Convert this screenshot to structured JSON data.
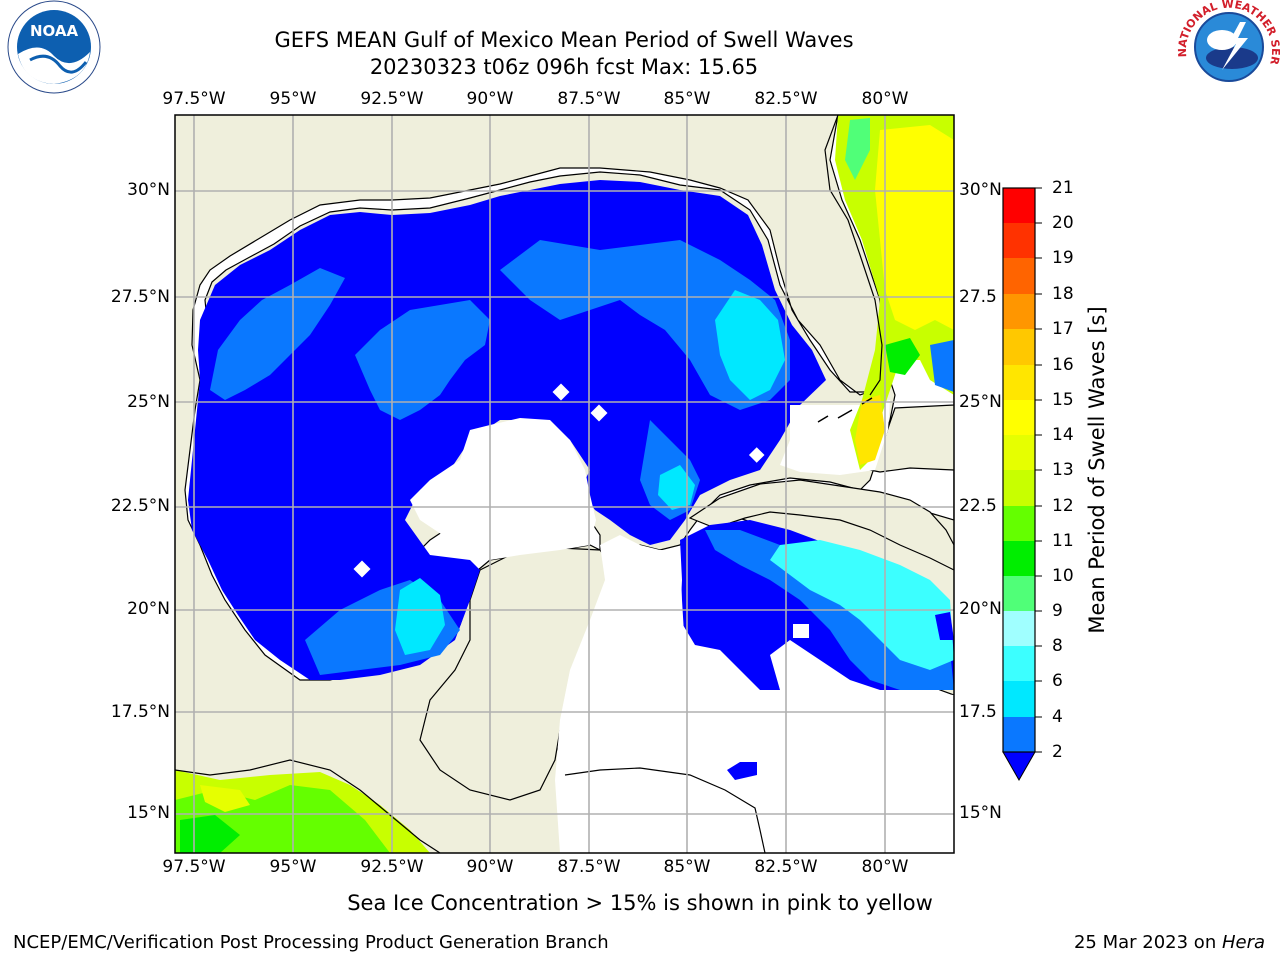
{
  "title": {
    "line1": "GEFS MEAN Gulf of Mexico Mean Period of Swell Waves",
    "line2": "20230323 t06z 096h fcst   Max: 15.65"
  },
  "map": {
    "lon_labels": [
      "97.5°W",
      "95°W",
      "92.5°W",
      "90°W",
      "87.5°W",
      "85°W",
      "82.5°W",
      "80°W"
    ],
    "lat_labels_left": [
      "30°N",
      "27.5°N",
      "25°N",
      "22.5°N",
      "20°N",
      "17.5°N",
      "15°N"
    ],
    "lat_labels_right": [
      "30°N",
      "27.5",
      "25°N",
      "22.5",
      "20°N",
      "17.5",
      "15°N"
    ],
    "land_color": "#efefdc",
    "water_color": "#ffffff",
    "grid_color": "#b0b0b0"
  },
  "colorbar": {
    "title": "Mean Period of Swell Waves [s]",
    "ticks": [
      "2",
      "4",
      "6",
      "8",
      "9",
      "10",
      "11",
      "12",
      "13",
      "14",
      "15",
      "16",
      "17",
      "18",
      "19",
      "20",
      "21"
    ],
    "colors": [
      "#0a78ff",
      "#00e8ff",
      "#3cffff",
      "#a0ffff",
      "#50ff78",
      "#00ee00",
      "#64ff00",
      "#c8ff00",
      "#e6ff00",
      "#ffff00",
      "#ffe600",
      "#ffc800",
      "#ff9600",
      "#ff6400",
      "#ff3200",
      "#ff0000"
    ],
    "under_color": "#0000ff"
  },
  "note": "Sea Ice Concentration > 15% is shown in pink to yellow",
  "footer": {
    "credit": "NCEP/EMC/Verification Post Processing Product Generation Branch",
    "date": "25 Mar 2023 on ",
    "machine": "Hera"
  },
  "logos": {
    "noaa_text": "NOAA",
    "nws_text": "NATIONAL WEATHER SERVICE"
  }
}
